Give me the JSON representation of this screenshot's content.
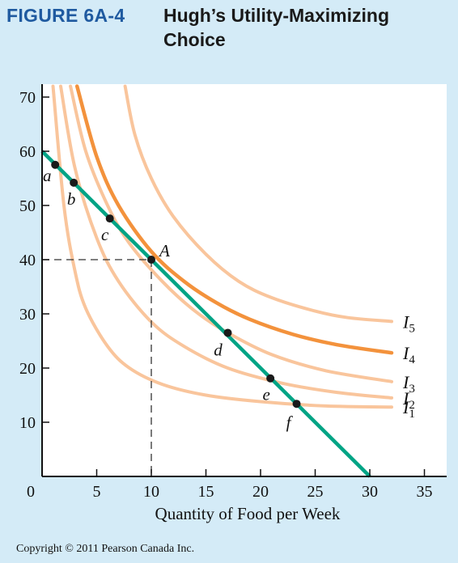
{
  "figure": {
    "label": "FIGURE 6A-4",
    "title": "Hugh’s Utility-Maximizing Choice"
  },
  "copyright": "Copyright © 2011 Pearson Canada Inc.",
  "colors": {
    "background": "#d4ebf7",
    "figure_label": "#1f5aa0",
    "budget_line": "#00a485",
    "indifference_light": "#f9c59c",
    "indifference_optimal": "#f3923c",
    "points": "#1a1a1a"
  },
  "chart_data": {
    "type": "line",
    "title": "",
    "xlabel": "Quantity of Food per Week",
    "ylabel": "",
    "xlim": [
      0,
      35
    ],
    "ylim": [
      0,
      70
    ],
    "x_ticks": [
      0,
      5,
      10,
      15,
      20,
      25,
      30,
      35
    ],
    "y_ticks": [
      10,
      20,
      30,
      40,
      50,
      60,
      70
    ],
    "grid": false,
    "budget_line": {
      "x": [
        0,
        30
      ],
      "y": [
        60,
        0
      ]
    },
    "indifference_curves": [
      {
        "name": "I",
        "sub": "1",
        "points": [
          [
            1.0,
            72
          ],
          [
            2,
            50
          ],
          [
            3,
            38
          ],
          [
            4,
            31
          ],
          [
            6,
            24
          ],
          [
            8,
            20
          ],
          [
            11,
            17
          ],
          [
            15,
            15
          ],
          [
            20,
            13.8
          ],
          [
            26,
            13
          ],
          [
            32,
            12.8
          ]
        ]
      },
      {
        "name": "I",
        "sub": "2",
        "points": [
          [
            1.7,
            72
          ],
          [
            3,
            57
          ],
          [
            5,
            44
          ],
          [
            7,
            36
          ],
          [
            10,
            28.5
          ],
          [
            13,
            24
          ],
          [
            17,
            20
          ],
          [
            22,
            17.2
          ],
          [
            27,
            15.5
          ],
          [
            32,
            14.5
          ]
        ]
      },
      {
        "name": "I",
        "sub": "3",
        "points": [
          [
            2.6,
            72
          ],
          [
            4,
            60
          ],
          [
            6,
            50
          ],
          [
            8,
            43
          ],
          [
            11,
            36
          ],
          [
            14,
            30.5
          ],
          [
            17,
            26.5
          ],
          [
            21,
            22.5
          ],
          [
            26,
            19.5
          ],
          [
            32,
            17.5
          ]
        ]
      },
      {
        "name": "I",
        "sub": "4",
        "optimal": true,
        "points": [
          [
            3.2,
            72
          ],
          [
            5,
            59
          ],
          [
            7,
            50
          ],
          [
            10,
            41.5
          ],
          [
            13,
            36
          ],
          [
            16,
            32
          ],
          [
            19,
            29
          ],
          [
            23,
            26.2
          ],
          [
            27,
            24.3
          ],
          [
            32,
            22.8
          ]
        ]
      },
      {
        "name": "I",
        "sub": "5",
        "points": [
          [
            7.6,
            72
          ],
          [
            8.5,
            63
          ],
          [
            10,
            55
          ],
          [
            12,
            48
          ],
          [
            15,
            41
          ],
          [
            18,
            36
          ],
          [
            21,
            33
          ],
          [
            25,
            30.5
          ],
          [
            28,
            29.3
          ],
          [
            32,
            28.6
          ]
        ]
      }
    ],
    "points": [
      {
        "label": "a",
        "x": 1.2,
        "y": 57.5,
        "italic": true
      },
      {
        "label": "b",
        "x": 2.9,
        "y": 54.2,
        "italic": true
      },
      {
        "label": "c",
        "x": 6.2,
        "y": 47.6,
        "italic": true
      },
      {
        "label": "A",
        "x": 10.0,
        "y": 40.0,
        "italic": true
      },
      {
        "label": "d",
        "x": 17.0,
        "y": 26.5,
        "italic": true
      },
      {
        "label": "e",
        "x": 20.9,
        "y": 18.1,
        "italic": true
      },
      {
        "label": "f",
        "x": 23.3,
        "y": 13.4,
        "italic": true
      }
    ],
    "reference_lines": {
      "x": 10,
      "y": 40
    }
  }
}
